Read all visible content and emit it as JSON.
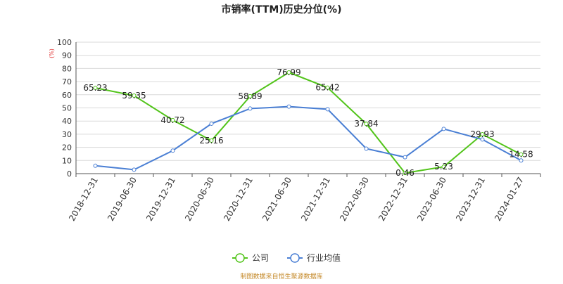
{
  "chart_data": {
    "type": "line",
    "title": "市销率(TTM)历史分位(%)",
    "ylabel": "(%)",
    "xlabel": "",
    "ylim": [
      0,
      100
    ],
    "yticks": [
      0,
      10,
      20,
      30,
      40,
      50,
      60,
      70,
      80,
      90,
      100
    ],
    "grid": true,
    "legend_position": "bottom",
    "categories": [
      "2018-12-31",
      "2019-06-30",
      "2019-12-31",
      "2020-06-30",
      "2020-12-31",
      "2021-06-30",
      "2021-12-31",
      "2022-06-30",
      "2022-12-31",
      "2023-06-30",
      "2023-12-31",
      "2024-01-27"
    ],
    "series": [
      {
        "name": "公司",
        "color": "#52c41a",
        "values": [
          65.23,
          59.35,
          40.72,
          25.16,
          58.89,
          76.99,
          65.42,
          37.84,
          0.46,
          5.23,
          29.93,
          14.58
        ],
        "data_labels": [
          "65.23",
          "59.35",
          "40.72",
          "25.16",
          "58.89",
          "76.99",
          "65.42",
          "37.84",
          "0.46",
          "5.23",
          "29.93",
          "14.58"
        ]
      },
      {
        "name": "行业均值",
        "color": "#4a7fd4",
        "values": [
          6,
          3,
          17.5,
          38,
          49.5,
          51,
          49,
          19,
          12.5,
          34,
          26,
          10
        ]
      }
    ]
  },
  "source_text": "制图数据来自恒生聚源数据库"
}
